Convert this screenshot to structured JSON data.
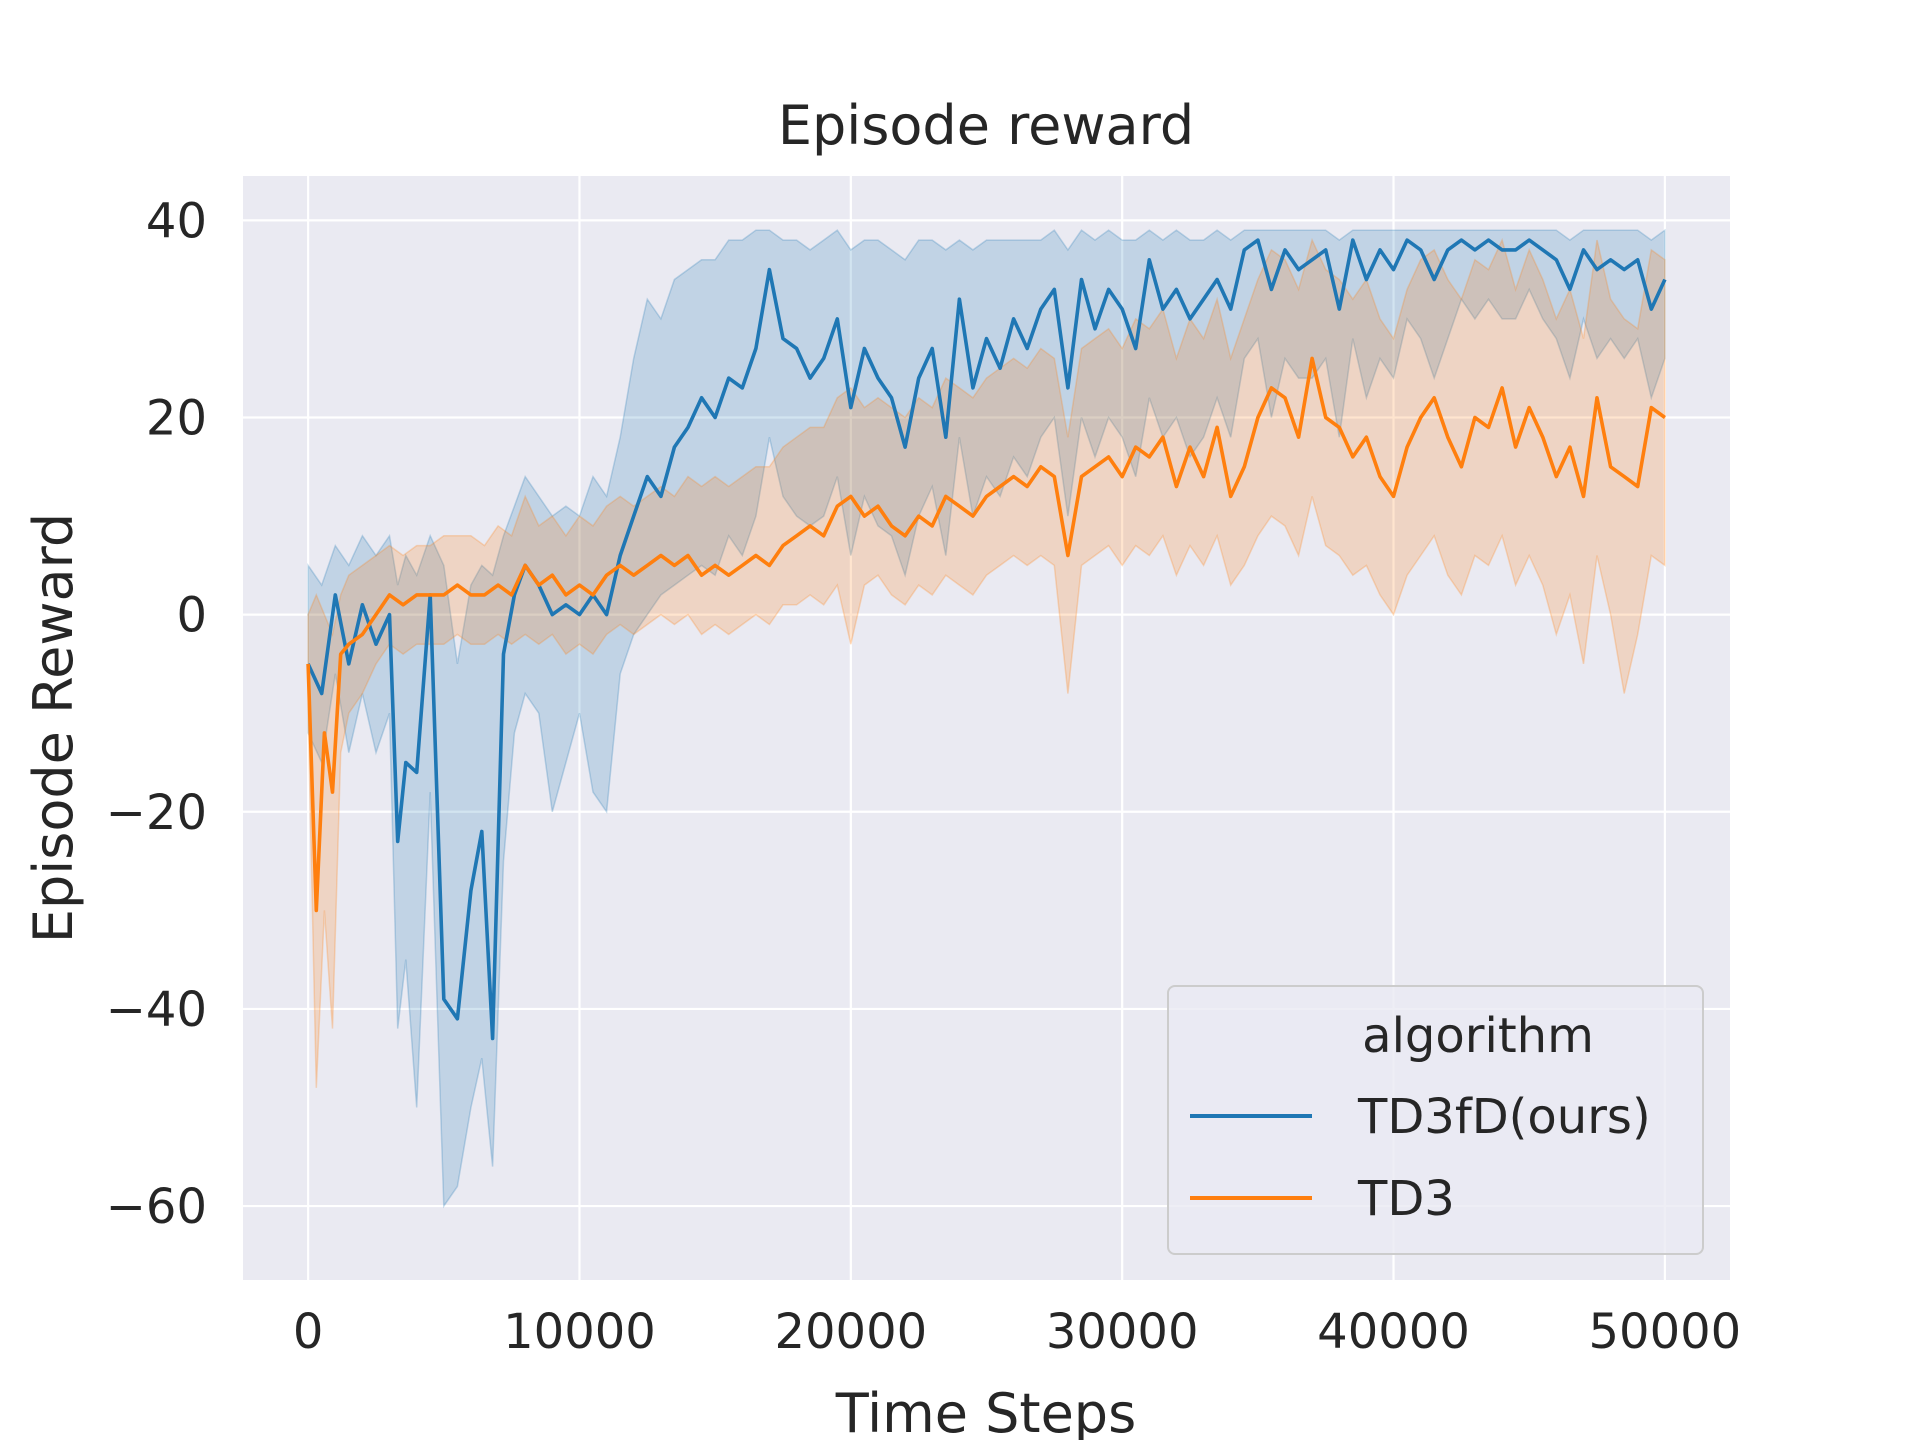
{
  "chart_data": {
    "type": "line",
    "title": "Episode reward",
    "xlabel": "Time Steps",
    "ylabel": "Episode Reward",
    "xlim": [
      -2400,
      52400
    ],
    "ylim": [
      -67.5,
      44.5
    ],
    "xticks": [
      0,
      10000,
      20000,
      30000,
      40000,
      50000
    ],
    "yticks": [
      -60,
      -40,
      -20,
      0,
      20,
      40
    ],
    "xtick_labels": [
      "0",
      "10000",
      "20000",
      "30000",
      "40000",
      "50000"
    ],
    "ytick_labels": [
      "−60",
      "−40",
      "−20",
      "0",
      "20",
      "40"
    ],
    "grid": true,
    "legend": {
      "title": "algorithm",
      "position": "lower-right"
    },
    "series": [
      {
        "name": "TD3fD(ours)",
        "color": "#1f77b4",
        "x": [
          0,
          500,
          1000,
          1500,
          2000,
          2500,
          3000,
          3300,
          3600,
          4000,
          4500,
          5000,
          5500,
          6000,
          6400,
          6800,
          7200,
          7600,
          8000,
          8500,
          9000,
          9500,
          10000,
          10500,
          11000,
          11500,
          12000,
          12500,
          13000,
          13500,
          14000,
          14500,
          15000,
          15500,
          16000,
          16500,
          17000,
          17500,
          18000,
          18500,
          19000,
          19500,
          20000,
          20500,
          21000,
          21500,
          22000,
          22500,
          23000,
          23500,
          24000,
          24500,
          25000,
          25500,
          26000,
          26500,
          27000,
          27500,
          28000,
          28500,
          29000,
          29500,
          30000,
          30500,
          31000,
          31500,
          32000,
          32500,
          33000,
          33500,
          34000,
          34500,
          35000,
          35500,
          36000,
          36500,
          37000,
          37500,
          38000,
          38500,
          39000,
          39500,
          40000,
          40500,
          41000,
          41500,
          42000,
          42500,
          43000,
          43500,
          44000,
          44500,
          45000,
          45500,
          46000,
          46500,
          47000,
          47500,
          48000,
          48500,
          49000,
          49500,
          50000
        ],
        "y": [
          -5,
          -8,
          2,
          -5,
          1,
          -3,
          0,
          -23,
          -15,
          -16,
          2,
          -39,
          -41,
          -28,
          -22,
          -43,
          -4,
          2,
          5,
          3,
          0,
          1,
          0,
          2,
          0,
          6,
          10,
          14,
          12,
          17,
          19,
          22,
          20,
          24,
          23,
          27,
          35,
          28,
          27,
          24,
          26,
          30,
          21,
          27,
          24,
          22,
          17,
          24,
          27,
          18,
          32,
          23,
          28,
          25,
          30,
          27,
          31,
          33,
          23,
          34,
          29,
          33,
          31,
          27,
          36,
          31,
          33,
          30,
          32,
          34,
          31,
          37,
          38,
          33,
          37,
          35,
          36,
          37,
          31,
          38,
          34,
          37,
          35,
          38,
          37,
          34,
          37,
          38,
          37,
          38,
          37,
          37,
          38,
          37,
          36,
          33,
          37,
          35,
          36,
          35,
          36,
          31,
          34
        ],
        "band_upper": [
          5,
          3,
          7,
          5,
          8,
          6,
          8,
          3,
          6,
          4,
          8,
          5,
          -5,
          3,
          5,
          4,
          8,
          11,
          14,
          12,
          10,
          11,
          10,
          14,
          12,
          18,
          26,
          32,
          30,
          34,
          35,
          36,
          36,
          38,
          38,
          39,
          39,
          38,
          38,
          37,
          38,
          39,
          37,
          38,
          38,
          37,
          36,
          38,
          38,
          37,
          38,
          37,
          38,
          38,
          38,
          38,
          38,
          39,
          37,
          39,
          38,
          39,
          38,
          38,
          39,
          38,
          39,
          38,
          38,
          39,
          38,
          39,
          39,
          39,
          39,
          39,
          39,
          39,
          38,
          39,
          39,
          39,
          39,
          39,
          39,
          39,
          39,
          39,
          39,
          39,
          39,
          39,
          39,
          39,
          39,
          38,
          39,
          39,
          39,
          39,
          39,
          38,
          39
        ],
        "band_lower": [
          -12,
          -15,
          -6,
          -14,
          -8,
          -14,
          -10,
          -42,
          -35,
          -50,
          -18,
          -60,
          -58,
          -50,
          -45,
          -56,
          -25,
          -12,
          -8,
          -10,
          -20,
          -15,
          -10,
          -18,
          -20,
          -6,
          -2,
          0,
          2,
          3,
          4,
          5,
          4,
          8,
          6,
          10,
          18,
          12,
          10,
          9,
          10,
          14,
          6,
          12,
          9,
          8,
          4,
          10,
          13,
          6,
          18,
          10,
          14,
          12,
          16,
          14,
          18,
          20,
          10,
          20,
          16,
          20,
          18,
          14,
          22,
          18,
          20,
          16,
          18,
          22,
          18,
          26,
          28,
          20,
          26,
          24,
          24,
          26,
          18,
          28,
          22,
          26,
          24,
          30,
          28,
          24,
          28,
          32,
          30,
          32,
          30,
          30,
          33,
          30,
          28,
          24,
          30,
          26,
          28,
          26,
          28,
          22,
          26
        ]
      },
      {
        "name": "TD3",
        "color": "#ff7f0e",
        "x": [
          0,
          300,
          600,
          900,
          1200,
          1500,
          2000,
          2500,
          3000,
          3500,
          4000,
          4500,
          5000,
          5500,
          6000,
          6500,
          7000,
          7500,
          8000,
          8500,
          9000,
          9500,
          10000,
          10500,
          11000,
          11500,
          12000,
          12500,
          13000,
          13500,
          14000,
          14500,
          15000,
          15500,
          16000,
          16500,
          17000,
          17500,
          18000,
          18500,
          19000,
          19500,
          20000,
          20500,
          21000,
          21500,
          22000,
          22500,
          23000,
          23500,
          24000,
          24500,
          25000,
          25500,
          26000,
          26500,
          27000,
          27500,
          28000,
          28500,
          29000,
          29500,
          30000,
          30500,
          31000,
          31500,
          32000,
          32500,
          33000,
          33500,
          34000,
          34500,
          35000,
          35500,
          36000,
          36500,
          37000,
          37500,
          38000,
          38500,
          39000,
          39500,
          40000,
          40500,
          41000,
          41500,
          42000,
          42500,
          43000,
          43500,
          44000,
          44500,
          45000,
          45500,
          46000,
          46500,
          47000,
          47500,
          48000,
          48500,
          49000,
          49500,
          50000
        ],
        "y": [
          -5,
          -30,
          -12,
          -18,
          -4,
          -3,
          -2,
          0,
          2,
          1,
          2,
          2,
          2,
          3,
          2,
          2,
          3,
          2,
          5,
          3,
          4,
          2,
          3,
          2,
          4,
          5,
          4,
          5,
          6,
          5,
          6,
          4,
          5,
          4,
          5,
          6,
          5,
          7,
          8,
          9,
          8,
          11,
          12,
          10,
          11,
          9,
          8,
          10,
          9,
          12,
          11,
          10,
          12,
          13,
          14,
          13,
          15,
          14,
          6,
          14,
          15,
          16,
          14,
          17,
          16,
          18,
          13,
          17,
          14,
          19,
          12,
          15,
          20,
          23,
          22,
          18,
          26,
          20,
          19,
          16,
          18,
          14,
          12,
          17,
          20,
          22,
          18,
          15,
          20,
          19,
          23,
          17,
          21,
          18,
          14,
          17,
          12,
          22,
          15,
          14,
          13,
          21,
          20
        ],
        "band_upper": [
          0,
          2,
          0,
          -2,
          2,
          4,
          5,
          6,
          7,
          6,
          7,
          7,
          8,
          8,
          8,
          7,
          9,
          8,
          12,
          9,
          10,
          8,
          10,
          9,
          11,
          12,
          11,
          12,
          13,
          12,
          14,
          13,
          14,
          13,
          14,
          15,
          15,
          17,
          18,
          19,
          19,
          22,
          23,
          21,
          22,
          21,
          20,
          22,
          21,
          24,
          23,
          22,
          24,
          25,
          26,
          25,
          27,
          26,
          18,
          27,
          28,
          29,
          27,
          30,
          29,
          31,
          26,
          30,
          28,
          32,
          26,
          30,
          34,
          37,
          36,
          33,
          38,
          35,
          34,
          32,
          34,
          30,
          28,
          33,
          36,
          37,
          34,
          32,
          36,
          35,
          38,
          33,
          37,
          34,
          30,
          33,
          28,
          38,
          32,
          30,
          29,
          37,
          36
        ],
        "band_lower": [
          -10,
          -48,
          -30,
          -42,
          -14,
          -10,
          -8,
          -5,
          -3,
          -4,
          -3,
          -3,
          -3,
          -2,
          -3,
          -3,
          -2,
          -3,
          -2,
          -3,
          -2,
          -4,
          -3,
          -4,
          -2,
          -1,
          -2,
          -1,
          0,
          -1,
          0,
          -2,
          -1,
          -2,
          -1,
          0,
          -1,
          1,
          1,
          2,
          1,
          3,
          -3,
          3,
          4,
          2,
          1,
          3,
          2,
          4,
          3,
          2,
          4,
          5,
          6,
          5,
          6,
          5,
          -8,
          5,
          6,
          7,
          5,
          7,
          6,
          8,
          4,
          7,
          5,
          8,
          3,
          5,
          8,
          10,
          9,
          6,
          12,
          7,
          6,
          4,
          5,
          2,
          0,
          4,
          6,
          8,
          4,
          2,
          6,
          5,
          8,
          3,
          6,
          3,
          -2,
          2,
          -5,
          6,
          0,
          -8,
          -2,
          6,
          5
        ]
      }
    ]
  }
}
